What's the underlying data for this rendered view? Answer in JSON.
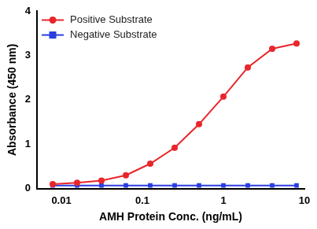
{
  "chart_data": {
    "type": "line",
    "x_label": "AMH Protein Conc. (ng/mL)",
    "y_label": "Absorbance (450 nm)",
    "x": [
      0.0078125,
      0.015625,
      0.03125,
      0.0625,
      0.125,
      0.25,
      0.5,
      1,
      2,
      4,
      8
    ],
    "series": [
      {
        "name": "Positive Substrate",
        "color": "#e8262b",
        "marker": "circle",
        "line_style": "solid",
        "values": [
          0.1,
          0.13,
          0.18,
          0.3,
          0.56,
          0.92,
          1.45,
          2.07,
          2.73,
          3.15,
          3.27
        ]
      },
      {
        "name": "Negative Substrate",
        "color": "#2a3ee0",
        "marker": "square",
        "line_style": "solid",
        "values": [
          0.07,
          0.07,
          0.07,
          0.07,
          0.07,
          0.07,
          0.07,
          0.07,
          0.07,
          0.07,
          0.07
        ]
      }
    ],
    "log": "x",
    "xlim": [
      0.005,
      10
    ],
    "xticks": [
      0.01,
      0.1,
      1,
      10
    ],
    "ylim": [
      0,
      4
    ],
    "yticks": [
      0,
      1,
      2,
      3,
      4
    ],
    "grid": false,
    "legend": "upper left"
  }
}
